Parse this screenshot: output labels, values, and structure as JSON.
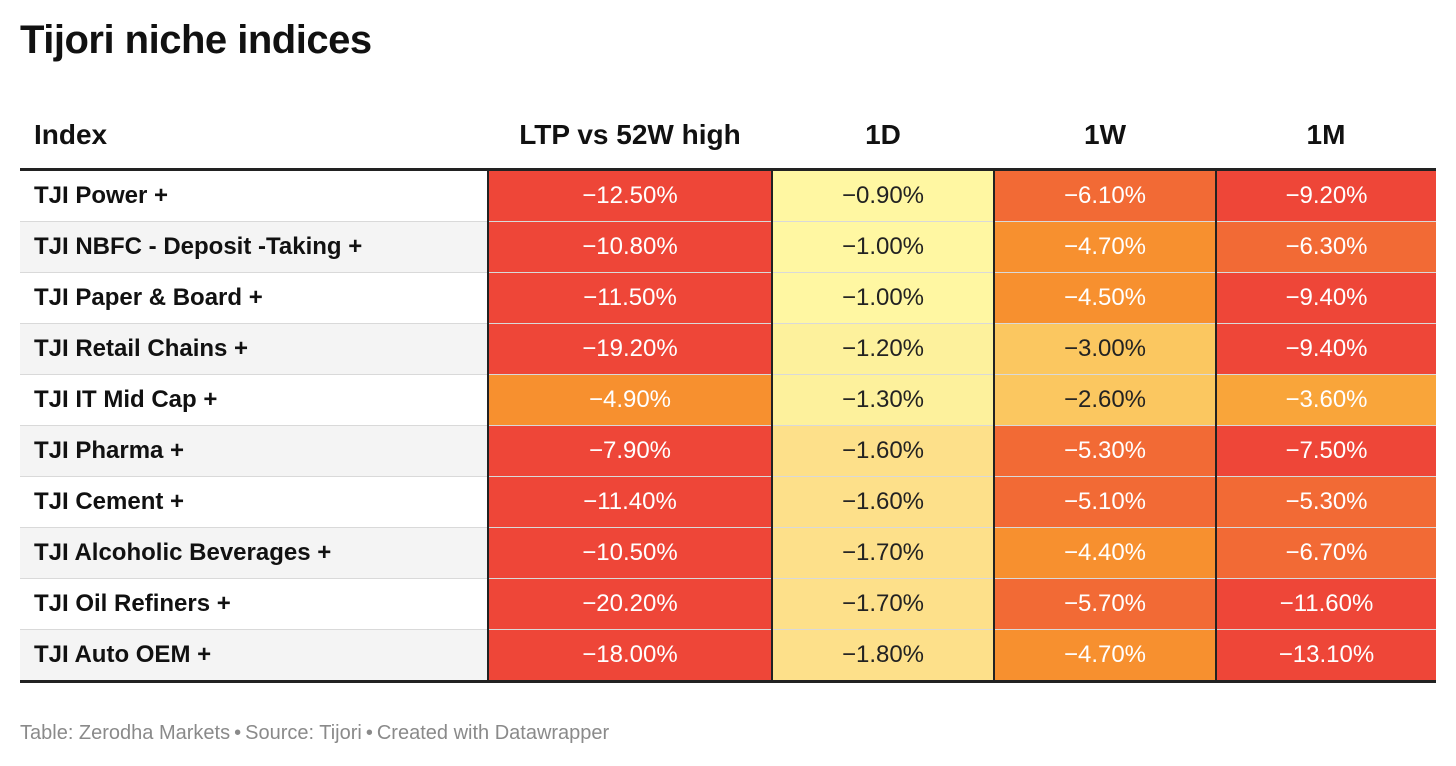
{
  "title": "Tijori niche indices",
  "footer": {
    "table_credit": "Table: Zerodha Markets",
    "source": "Source: Tijori",
    "created": "Created with Datawrapper"
  },
  "colors": {
    "red": "#ee4638",
    "red_orange": "#f26a35",
    "orange": "#f7902f",
    "orange_light": "#f9a53a",
    "amber": "#fbc760",
    "yellow_dark": "#fde08a",
    "yellow": "#fdf19c",
    "yellow_light": "#fff7a2"
  },
  "chart_data": {
    "type": "table",
    "title": "Tijori niche indices",
    "columns": [
      "Index",
      "LTP vs 52W high",
      "1D",
      "1W",
      "1M"
    ],
    "rows": [
      {
        "index": "TJI Power +",
        "ltp": "−12.50%",
        "d1": "−0.90%",
        "w1": "−6.10%",
        "m1": "−9.20%",
        "values": [
          -12.5,
          -0.9,
          -6.1,
          -9.2
        ]
      },
      {
        "index": "TJI NBFC - Deposit -Taking +",
        "ltp": "−10.80%",
        "d1": "−1.00%",
        "w1": "−4.70%",
        "m1": "−6.30%",
        "values": [
          -10.8,
          -1.0,
          -4.7,
          -6.3
        ]
      },
      {
        "index": "TJI Paper & Board +",
        "ltp": "−11.50%",
        "d1": "−1.00%",
        "w1": "−4.50%",
        "m1": "−9.40%",
        "values": [
          -11.5,
          -1.0,
          -4.5,
          -9.4
        ]
      },
      {
        "index": "TJI Retail Chains +",
        "ltp": "−19.20%",
        "d1": "−1.20%",
        "w1": "−3.00%",
        "m1": "−9.40%",
        "values": [
          -19.2,
          -1.2,
          -3.0,
          -9.4
        ]
      },
      {
        "index": "TJI IT Mid Cap +",
        "ltp": "−4.90%",
        "d1": "−1.30%",
        "w1": "−2.60%",
        "m1": "−3.60%",
        "values": [
          -4.9,
          -1.3,
          -2.6,
          -3.6
        ]
      },
      {
        "index": "TJI Pharma +",
        "ltp": "−7.90%",
        "d1": "−1.60%",
        "w1": "−5.30%",
        "m1": "−7.50%",
        "values": [
          -7.9,
          -1.6,
          -5.3,
          -7.5
        ]
      },
      {
        "index": "TJI Cement +",
        "ltp": "−11.40%",
        "d1": "−1.60%",
        "w1": "−5.10%",
        "m1": "−5.30%",
        "values": [
          -11.4,
          -1.6,
          -5.1,
          -5.3
        ]
      },
      {
        "index": "TJI Alcoholic Beverages +",
        "ltp": "−10.50%",
        "d1": "−1.70%",
        "w1": "−4.40%",
        "m1": "−6.70%",
        "values": [
          -10.5,
          -1.7,
          -4.4,
          -6.7
        ]
      },
      {
        "index": "TJI Oil Refiners +",
        "ltp": "−20.20%",
        "d1": "−1.70%",
        "w1": "−5.70%",
        "m1": "−11.60%",
        "values": [
          -20.2,
          -1.7,
          -5.7,
          -11.6
        ]
      },
      {
        "index": "TJI Auto OEM +",
        "ltp": "−18.00%",
        "d1": "−1.80%",
        "w1": "−4.70%",
        "m1": "−13.10%",
        "values": [
          -18.0,
          -1.8,
          -4.7,
          -13.1
        ]
      }
    ]
  }
}
